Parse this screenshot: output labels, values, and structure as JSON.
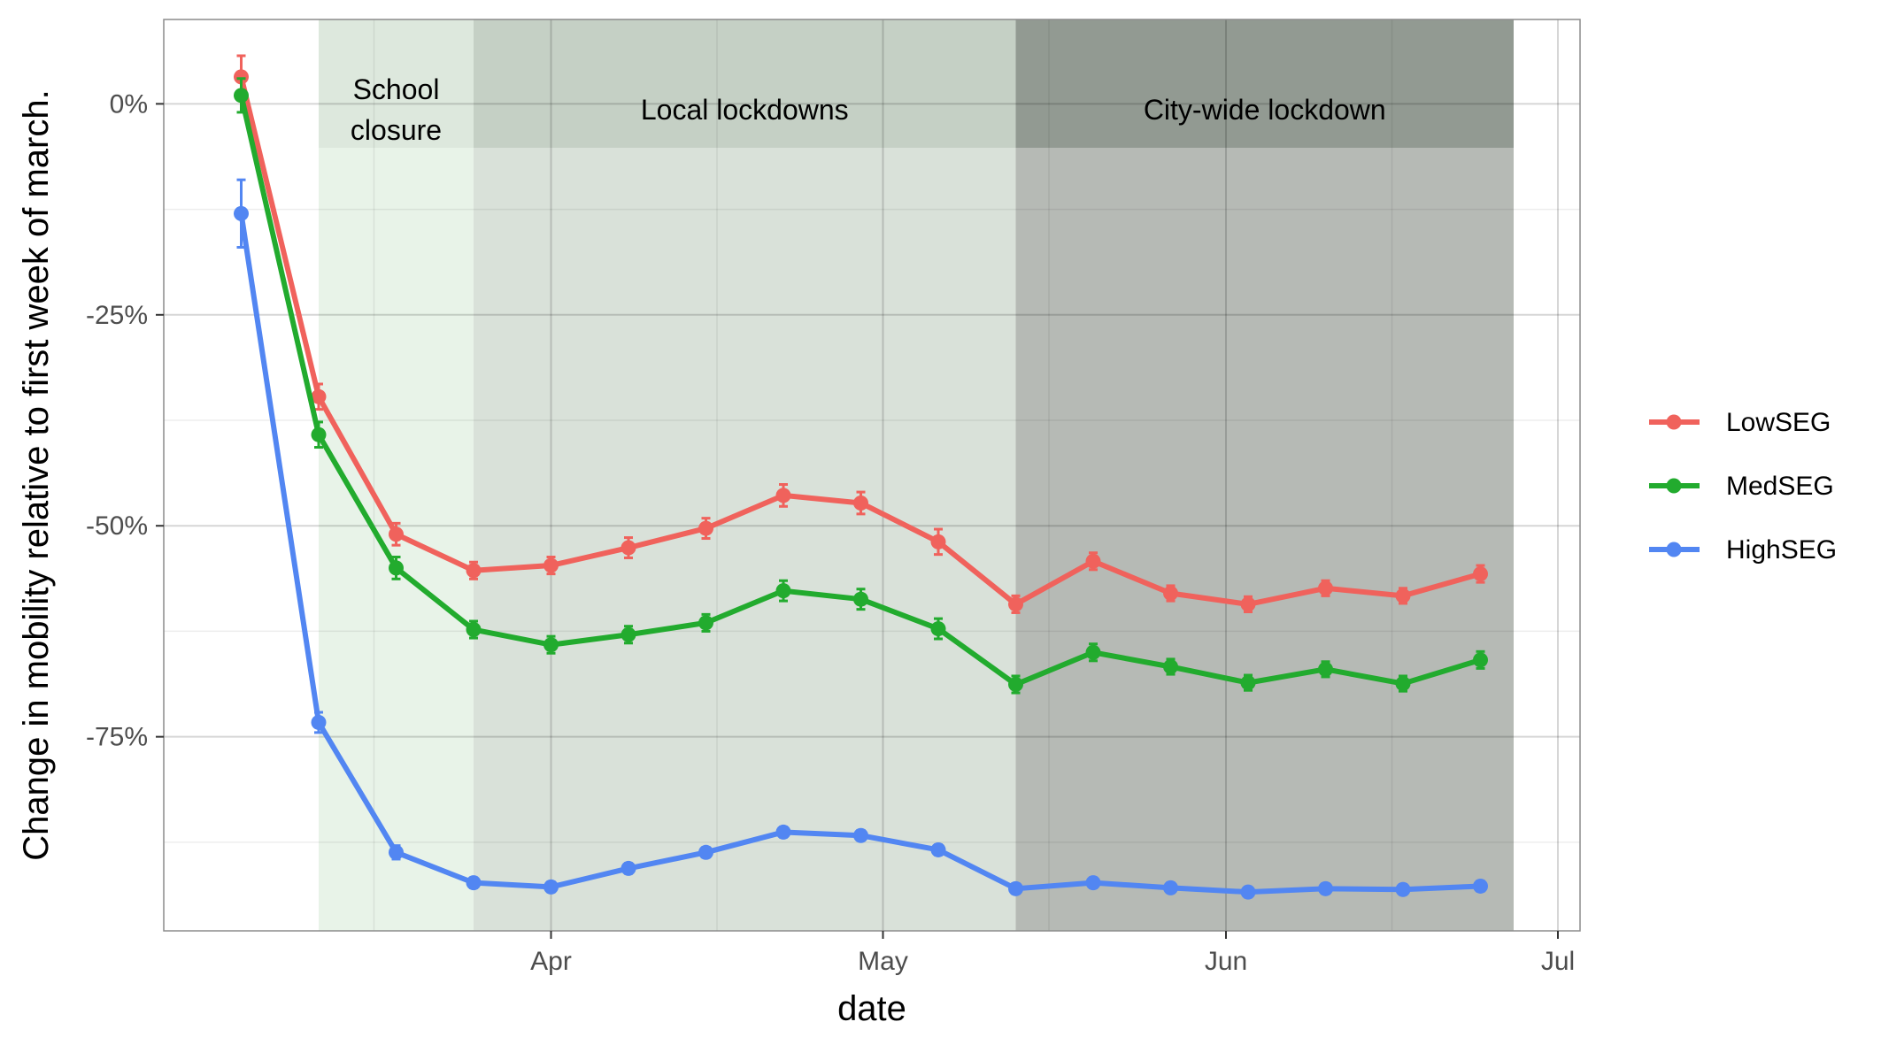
{
  "chart_data": {
    "type": "line",
    "title": "",
    "xlabel": "date",
    "ylabel": "Change in mobility relative to first week of march.",
    "x": [
      "2020-03-04",
      "2020-03-11",
      "2020-03-18",
      "2020-03-25",
      "2020-04-01",
      "2020-04-08",
      "2020-04-15",
      "2020-04-22",
      "2020-04-29",
      "2020-05-06",
      "2020-05-13",
      "2020-05-20",
      "2020-05-27",
      "2020-06-03",
      "2020-06-10",
      "2020-06-17",
      "2020-06-24"
    ],
    "xlim": [
      "2020-02-26",
      "2020-07-03"
    ],
    "x_ticks": [
      {
        "date": "2020-04-01",
        "label": "Apr"
      },
      {
        "date": "2020-05-01",
        "label": "May"
      },
      {
        "date": "2020-06-01",
        "label": "Jun"
      },
      {
        "date": "2020-07-01",
        "label": "Jul"
      }
    ],
    "x_minor_gridlines": [
      "2020-03-16",
      "2020-04-16",
      "2020-05-16",
      "2020-06-16"
    ],
    "ylim": [
      -98,
      10
    ],
    "y_ticks": [
      {
        "value": 0,
        "label": "0%"
      },
      {
        "value": -25,
        "label": "-25%"
      },
      {
        "value": -50,
        "label": "-50%"
      },
      {
        "value": -75,
        "label": "-75%"
      }
    ],
    "y_minor_gridlines": [
      -12.5,
      -37.5,
      -62.5,
      -87.5
    ],
    "grid": true,
    "legend_position": "right",
    "periods": [
      {
        "label_lines": [
          "School",
          "closure"
        ],
        "start": "2020-03-11",
        "end": "2020-03-25",
        "color": "#e8f3e8",
        "label_band_color": "#dde8dd"
      },
      {
        "label_lines": [
          "Local lockdowns"
        ],
        "start": "2020-03-25",
        "end": "2020-05-13",
        "color": "#d9e1d9",
        "label_band_color": "#c5d0c5"
      },
      {
        "label_lines": [
          "City-wide lockdown"
        ],
        "start": "2020-05-13",
        "end": "2020-06-27",
        "color": "#b6bab5",
        "label_band_color": "#929a92"
      }
    ],
    "series": [
      {
        "name": "LowSEG",
        "color": "#f0625c",
        "values": [
          3.2,
          -34.7,
          -51.0,
          -55.3,
          -54.7,
          -52.6,
          -50.3,
          -46.4,
          -47.3,
          -51.9,
          -59.3,
          -54.2,
          -58.0,
          -59.3,
          -57.4,
          -58.3,
          -55.7
        ],
        "errors": [
          2.5,
          1.5,
          1.3,
          1.0,
          1.0,
          1.2,
          1.2,
          1.3,
          1.3,
          1.5,
          1.0,
          1.0,
          0.9,
          0.9,
          0.9,
          0.9,
          1.0
        ]
      },
      {
        "name": "MedSEG",
        "color": "#22ab2e",
        "values": [
          1.0,
          -39.2,
          -55.0,
          -62.3,
          -64.1,
          -62.9,
          -61.5,
          -57.7,
          -58.7,
          -62.2,
          -68.8,
          -65.0,
          -66.7,
          -68.6,
          -67.0,
          -68.7,
          -65.9
        ],
        "errors": [
          2.0,
          1.5,
          1.3,
          1.0,
          1.0,
          1.0,
          1.0,
          1.2,
          1.2,
          1.2,
          1.0,
          1.0,
          0.9,
          0.9,
          0.9,
          0.9,
          1.0
        ]
      },
      {
        "name": "HighSEG",
        "color": "#5286f2",
        "values": [
          -13.0,
          -73.3,
          -88.7,
          -92.3,
          -92.8,
          -90.6,
          -88.7,
          -86.3,
          -86.7,
          -88.4,
          -93.0,
          -92.3,
          -92.9,
          -93.4,
          -93.0,
          -93.1,
          -92.7
        ],
        "errors": [
          4.0,
          1.2,
          0.8,
          0.6,
          0.6,
          0.6,
          0.6,
          0.6,
          0.6,
          0.6,
          0.6,
          0.6,
          0.6,
          0.6,
          0.6,
          0.6,
          0.6
        ]
      }
    ]
  }
}
